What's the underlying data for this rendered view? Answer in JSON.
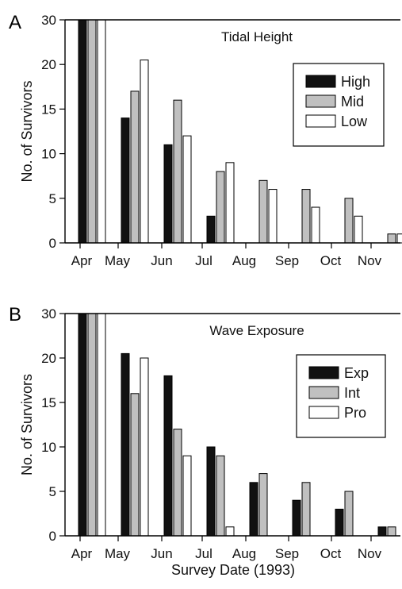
{
  "colors": {
    "dark": "#111111",
    "mid": "#c0c0c0",
    "light": "#ffffff",
    "stroke": "#000000"
  },
  "chart_data": [
    {
      "panel": "A",
      "type": "bar",
      "title": "Tidal Height",
      "ylabel": "No. of Survivors",
      "xlabel": "",
      "ylim": [
        0,
        30
      ],
      "y_ticks": [
        "0",
        "5",
        "10",
        "15",
        "20",
        "30"
      ],
      "categories": [
        "Apr",
        "May",
        "Jun",
        "Jul",
        "Aug",
        "Sep",
        "Oct",
        "Nov"
      ],
      "legend_position": "top-right",
      "grid": false,
      "series": [
        {
          "name": "High",
          "values": [
            30,
            14,
            11,
            3,
            0,
            0,
            0,
            0
          ]
        },
        {
          "name": "Mid",
          "values": [
            30,
            17,
            16,
            8,
            7,
            6,
            5,
            1
          ]
        },
        {
          "name": "Low",
          "values": [
            30,
            21,
            12,
            9,
            6,
            4,
            3,
            1
          ]
        }
      ]
    },
    {
      "panel": "B",
      "type": "bar",
      "title": "Wave Exposure",
      "ylabel": "No. of Survivors",
      "xlabel": "Survey Date (1993)",
      "ylim": [
        0,
        30
      ],
      "y_ticks": [
        "0",
        "5",
        "10",
        "15",
        "20",
        "30"
      ],
      "categories": [
        "Apr",
        "May",
        "Jun",
        "Jul",
        "Aug",
        "Sep",
        "Oct",
        "Nov"
      ],
      "legend_position": "top-right",
      "grid": false,
      "series": [
        {
          "name": "Exp",
          "values": [
            30,
            21,
            18,
            10,
            6,
            4,
            3,
            1
          ]
        },
        {
          "name": "Int",
          "values": [
            30,
            16,
            12,
            9,
            7,
            6,
            5,
            1
          ]
        },
        {
          "name": "Pro",
          "values": [
            30,
            20,
            9,
            1,
            0,
            0,
            0,
            0
          ]
        }
      ]
    }
  ]
}
